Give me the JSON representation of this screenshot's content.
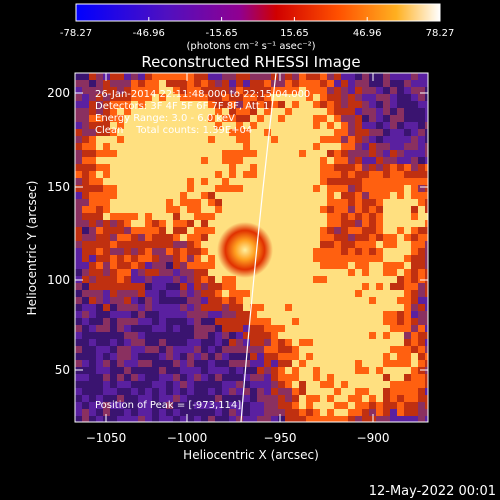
{
  "colorbar": {
    "ticks": [
      "-78.27",
      "-46.96",
      "-15.65",
      "15.65",
      "46.96",
      "78.27"
    ],
    "unit_label": "(photons cm⁻² s⁻¹ asec⁻²)",
    "colors": [
      "#0000ff",
      "#4000d0",
      "#8000a0",
      "#c00000",
      "#ff4000",
      "#ff9000",
      "#ffe060",
      "#ffffff"
    ]
  },
  "title": "Reconstructed RHESSI Image",
  "info": {
    "time_range": "26-Jan-2014 22:11:48.000 to 22:15:04.000",
    "detectors": "Detectors: 3F 4F 5F 6F 7F 8F, Att 1",
    "energy_range": "Energy Range: 3.0 - 6.0 keV",
    "method_counts": "Clean    Total counts: 1.39E+04"
  },
  "peak_label": "Position of Peak = [-973,114]",
  "x_axis": {
    "label": "Heliocentric X (arcsec)",
    "ticks": [
      "−1050",
      "−1000",
      "−950",
      "−900"
    ]
  },
  "y_axis": {
    "label": "Heliocentric Y (arcsec)",
    "ticks": [
      "50",
      "100",
      "150",
      "200"
    ]
  },
  "footer_timestamp": "12-May-2022 00:01",
  "image_palette": {
    "background": "#3a1470",
    "low": "#5a20a0",
    "mid": "#8a3060",
    "warm": "#c03010",
    "hot": "#ff6010",
    "peak": "#ffe080"
  }
}
